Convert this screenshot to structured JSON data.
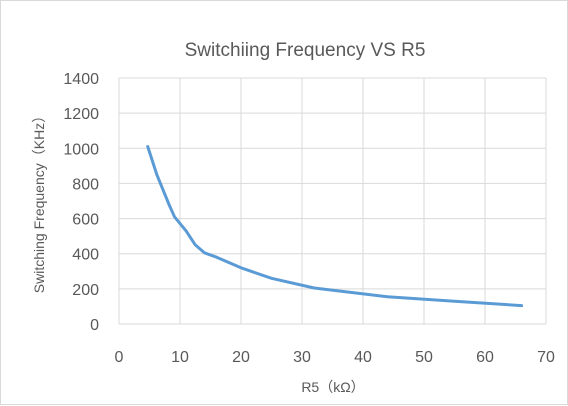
{
  "chart_data": {
    "type": "line",
    "title": "Switchiing Frequency VS R5",
    "xlabel": "R5（kΩ）",
    "ylabel": "Switching Frequency（KHz）",
    "xlim": [
      0,
      70
    ],
    "ylim": [
      0,
      1400
    ],
    "xticks": [
      0,
      10,
      20,
      30,
      40,
      50,
      60,
      70
    ],
    "yticks": [
      0,
      200,
      400,
      600,
      800,
      1000,
      1200,
      1400
    ],
    "grid": true,
    "legend": "none",
    "series": [
      {
        "color": "#5b9bd5",
        "points": [
          [
            4.7,
            1010
          ],
          [
            6.2,
            850
          ],
          [
            8.2,
            680
          ],
          [
            9.1,
            610
          ],
          [
            11,
            530
          ],
          [
            12.5,
            450
          ],
          [
            14,
            405
          ],
          [
            16,
            380
          ],
          [
            20,
            320
          ],
          [
            25,
            260
          ],
          [
            32,
            205
          ],
          [
            44,
            155
          ],
          [
            55,
            130
          ],
          [
            66,
            105
          ]
        ]
      }
    ]
  }
}
